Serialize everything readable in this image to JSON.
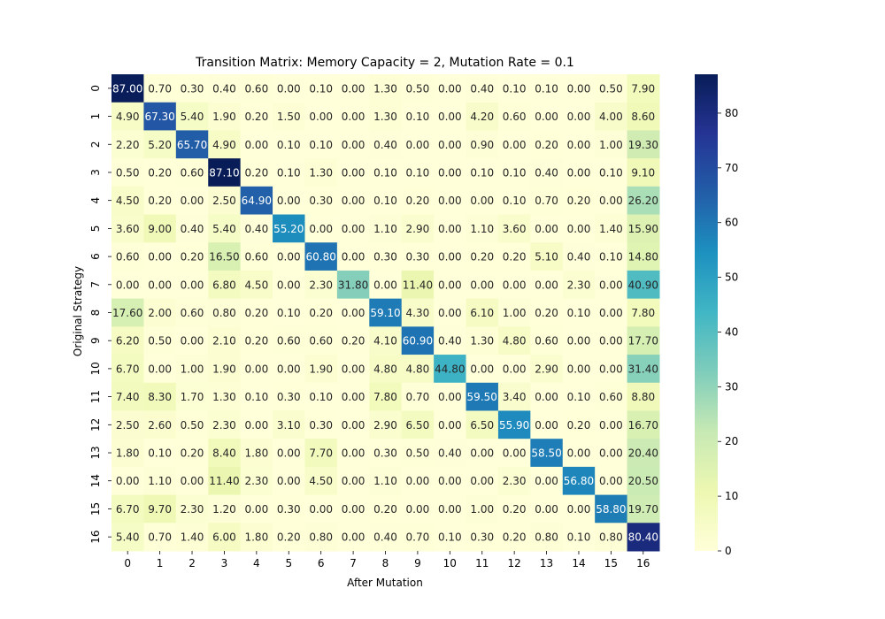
{
  "chart_data": {
    "type": "heatmap",
    "title": "Transition Matrix: Memory Capacity = 2, Mutation Rate = 0.1",
    "xlabel": "After Mutation",
    "ylabel": "Original Strategy",
    "x_categories": [
      "0",
      "1",
      "2",
      "3",
      "4",
      "5",
      "6",
      "7",
      "8",
      "9",
      "10",
      "11",
      "12",
      "13",
      "14",
      "15",
      "16"
    ],
    "y_categories": [
      "0",
      "1",
      "2",
      "3",
      "4",
      "5",
      "6",
      "7",
      "8",
      "9",
      "10",
      "11",
      "12",
      "13",
      "14",
      "15",
      "16"
    ],
    "values": [
      [
        87.0,
        0.7,
        0.3,
        0.4,
        0.6,
        0.0,
        0.1,
        0.0,
        1.3,
        0.5,
        0.0,
        0.4,
        0.1,
        0.1,
        0.0,
        0.5,
        7.9
      ],
      [
        4.9,
        67.3,
        5.4,
        1.9,
        0.2,
        1.5,
        0.0,
        0.0,
        1.3,
        0.1,
        0.0,
        4.2,
        0.6,
        0.0,
        0.0,
        4.0,
        8.6
      ],
      [
        2.2,
        5.2,
        65.7,
        4.9,
        0.0,
        0.1,
        0.1,
        0.0,
        0.4,
        0.0,
        0.0,
        0.9,
        0.0,
        0.2,
        0.0,
        1.0,
        19.3
      ],
      [
        0.5,
        0.2,
        0.6,
        87.1,
        0.2,
        0.1,
        1.3,
        0.0,
        0.1,
        0.1,
        0.0,
        0.1,
        0.1,
        0.4,
        0.0,
        0.1,
        9.1
      ],
      [
        4.5,
        0.2,
        0.0,
        2.5,
        64.9,
        0.0,
        0.3,
        0.0,
        0.1,
        0.2,
        0.0,
        0.0,
        0.1,
        0.7,
        0.2,
        0.0,
        26.2
      ],
      [
        3.6,
        9.0,
        0.4,
        5.4,
        0.4,
        55.2,
        0.0,
        0.0,
        1.1,
        2.9,
        0.0,
        1.1,
        3.6,
        0.0,
        0.0,
        1.4,
        15.9
      ],
      [
        0.6,
        0.0,
        0.2,
        16.5,
        0.6,
        0.0,
        60.8,
        0.0,
        0.3,
        0.3,
        0.0,
        0.2,
        0.2,
        5.1,
        0.4,
        0.1,
        14.8
      ],
      [
        0.0,
        0.0,
        0.0,
        6.8,
        4.5,
        0.0,
        2.3,
        31.8,
        0.0,
        11.4,
        0.0,
        0.0,
        0.0,
        0.0,
        2.3,
        0.0,
        40.9
      ],
      [
        17.6,
        2.0,
        0.6,
        0.8,
        0.2,
        0.1,
        0.2,
        0.0,
        59.1,
        4.3,
        0.0,
        6.1,
        1.0,
        0.2,
        0.1,
        0.0,
        7.8
      ],
      [
        6.2,
        0.5,
        0.0,
        2.1,
        0.2,
        0.6,
        0.6,
        0.2,
        4.1,
        60.9,
        0.4,
        1.3,
        4.8,
        0.6,
        0.0,
        0.0,
        17.7
      ],
      [
        6.7,
        0.0,
        1.0,
        1.9,
        0.0,
        0.0,
        1.9,
        0.0,
        4.8,
        4.8,
        44.8,
        0.0,
        0.0,
        2.9,
        0.0,
        0.0,
        31.4
      ],
      [
        7.4,
        8.3,
        1.7,
        1.3,
        0.1,
        0.3,
        0.1,
        0.0,
        7.8,
        0.7,
        0.0,
        59.5,
        3.4,
        0.0,
        0.1,
        0.6,
        8.8
      ],
      [
        2.5,
        2.6,
        0.5,
        2.3,
        0.0,
        3.1,
        0.3,
        0.0,
        2.9,
        6.5,
        0.0,
        6.5,
        55.9,
        0.0,
        0.2,
        0.0,
        16.7
      ],
      [
        1.8,
        0.1,
        0.2,
        8.4,
        1.8,
        0.0,
        7.7,
        0.0,
        0.3,
        0.5,
        0.4,
        0.0,
        0.0,
        58.5,
        0.0,
        0.0,
        20.4
      ],
      [
        0.0,
        1.1,
        0.0,
        11.4,
        2.3,
        0.0,
        4.5,
        0.0,
        1.1,
        0.0,
        0.0,
        0.0,
        2.3,
        0.0,
        56.8,
        0.0,
        20.5
      ],
      [
        6.7,
        9.7,
        2.3,
        1.2,
        0.0,
        0.3,
        0.0,
        0.0,
        0.2,
        0.0,
        0.0,
        1.0,
        0.2,
        0.0,
        0.0,
        58.8,
        19.7
      ],
      [
        5.4,
        0.7,
        1.4,
        6.0,
        1.8,
        0.2,
        0.8,
        0.0,
        0.4,
        0.7,
        0.1,
        0.3,
        0.2,
        0.8,
        0.1,
        0.8,
        80.4
      ]
    ],
    "colormap": "YlGnBu",
    "colorbar": {
      "vmin": 0,
      "vmax": 87.1,
      "ticks": [
        0,
        10,
        20,
        30,
        40,
        50,
        60,
        70,
        80
      ]
    },
    "annotation_format": "0.00",
    "grid": false
  }
}
